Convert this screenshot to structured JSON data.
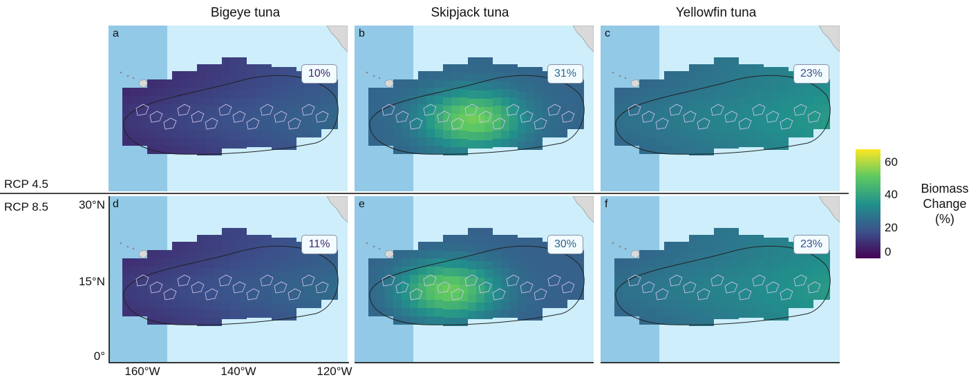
{
  "columns": [
    "Bigeye tuna",
    "Skipjack tuna",
    "Yellowfin tuna"
  ],
  "rows": [
    "RCP 4.5",
    "RCP 8.5"
  ],
  "panels": [
    {
      "letter": "a",
      "species": "Bigeye tuna",
      "scenario": "RCP 4.5",
      "percent": "10%",
      "mean_change": 10
    },
    {
      "letter": "b",
      "species": "Skipjack tuna",
      "scenario": "RCP 4.5",
      "percent": "31%",
      "mean_change": 31
    },
    {
      "letter": "c",
      "species": "Yellowfin tuna",
      "scenario": "RCP 4.5",
      "percent": "23%",
      "mean_change": 23
    },
    {
      "letter": "d",
      "species": "Bigeye tuna",
      "scenario": "RCP 8.5",
      "percent": "11%",
      "mean_change": 11
    },
    {
      "letter": "e",
      "species": "Skipjack tuna",
      "scenario": "RCP 8.5",
      "percent": "30%",
      "mean_change": 30
    },
    {
      "letter": "f",
      "species": "Yellowfin tuna",
      "scenario": "RCP 8.5",
      "percent": "23%",
      "mean_change": 23
    }
  ],
  "axes": {
    "y_ticks": [
      "30°N",
      "15°N",
      "0°"
    ],
    "x_ticks": [
      "160°W",
      "140°W",
      "120°W"
    ]
  },
  "legend": {
    "title": "Biomass\nChange\n(%)",
    "ticks": [
      "60",
      "40",
      "20",
      "0"
    ],
    "range": [
      0,
      65
    ],
    "palette": [
      "#440154",
      "#3b528b",
      "#21918c",
      "#5ec962",
      "#fde725"
    ]
  },
  "colors": {
    "ocean": "#cdeefa",
    "closed_area": "#92c9e6",
    "land": "#d9d9d9"
  }
}
